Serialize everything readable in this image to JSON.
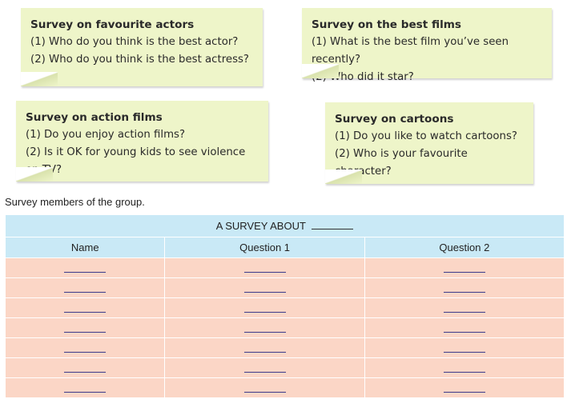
{
  "notes": [
    {
      "title": "Survey on favourite actors",
      "q1": "(1) Who do you think is the best actor?",
      "q2": "(2) Who do you think is the best actress?"
    },
    {
      "title": "Survey on the best films",
      "q1": "(1) What is the best film you’ve seen recently?",
      "q2": "(2) Who did it star?"
    },
    {
      "title": "Survey on action films",
      "q1": "(1) Do you enjoy action films?",
      "q2": "(2) Is it OK for young kids to see violence on TV?"
    },
    {
      "title": "Survey on cartoons",
      "q1": "(1) Do you like to watch cartoons?",
      "q2": "(2) Who is your favourite character?"
    }
  ],
  "instruction": "Survey members of the group.",
  "table": {
    "caption": "A SURVEY ABOUT",
    "headers": [
      "Name",
      "Question 1",
      "Question 2"
    ],
    "row_count": 7
  },
  "colors": {
    "note_bg": "#eef5c9",
    "table_header_bg": "#c9e9f6",
    "table_row_bg": "#fbd6c6"
  }
}
